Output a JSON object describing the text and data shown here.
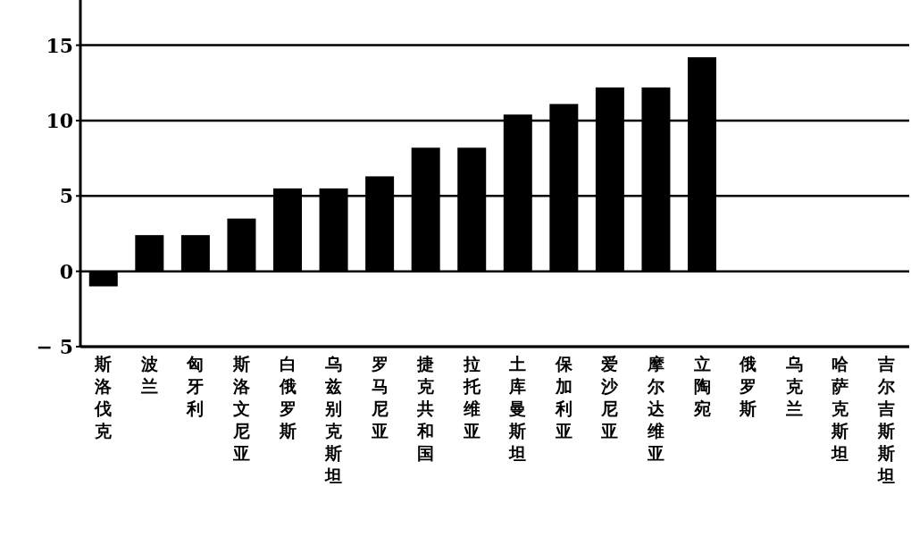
{
  "chart_data": {
    "type": "bar",
    "categories": [
      "斯洛伐克",
      "波兰",
      "匈牙利",
      "斯洛文尼亚",
      "白俄罗斯",
      "乌兹别克斯坦",
      "罗马尼亚",
      "捷克共和国",
      "拉托维亚",
      "土库曼斯坦",
      "保加利亚",
      "爱沙尼亚",
      "摩尔达维亚",
      "立陶宛",
      "俄罗斯",
      "乌克兰",
      "哈萨克斯坦",
      "吉尔吉斯斯坦"
    ],
    "values": [
      -1,
      2.4,
      2.4,
      3.5,
      5.5,
      5.5,
      6.3,
      8.2,
      8.2,
      10.4,
      11.1,
      12.2,
      12.2,
      14.2,
      null,
      null,
      null,
      null
    ],
    "color": "#000000",
    "ylim": [
      -5,
      18
    ],
    "yticks": [
      -5,
      0,
      5,
      10,
      15
    ],
    "grid": "y"
  }
}
